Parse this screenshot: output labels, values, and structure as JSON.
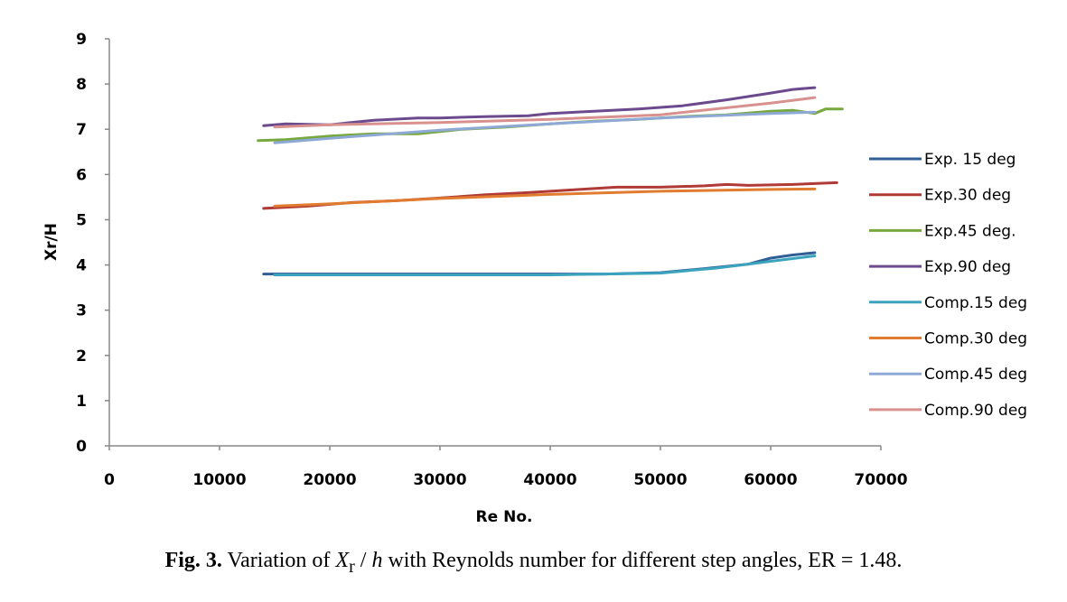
{
  "chart_data": {
    "type": "line",
    "xlabel": "Re No.",
    "ylabel": "Xr/H",
    "xlim": [
      0,
      70000
    ],
    "ylim": [
      0,
      9
    ],
    "xticks": [
      0,
      10000,
      20000,
      30000,
      40000,
      50000,
      60000,
      70000
    ],
    "yticks": [
      0,
      1,
      2,
      3,
      4,
      5,
      6,
      7,
      8,
      9
    ],
    "grid": false,
    "legend_position": "right",
    "series": [
      {
        "name": "Exp. 15 deg",
        "color": "#2f5f95",
        "x": [
          14000,
          20000,
          30000,
          40000,
          45000,
          50000,
          54000,
          58000,
          60000,
          62000,
          64000
        ],
        "y": [
          3.8,
          3.8,
          3.8,
          3.8,
          3.8,
          3.83,
          3.92,
          4.02,
          4.15,
          4.22,
          4.27
        ]
      },
      {
        "name": "Exp.30 deg",
        "color": "#b03a35",
        "x": [
          14000,
          18000,
          22000,
          26000,
          30000,
          34000,
          38000,
          42000,
          46000,
          50000,
          54000,
          56000,
          58000,
          62000,
          66000
        ],
        "y": [
          5.25,
          5.3,
          5.38,
          5.42,
          5.48,
          5.55,
          5.6,
          5.66,
          5.72,
          5.72,
          5.75,
          5.78,
          5.76,
          5.78,
          5.82
        ]
      },
      {
        "name": "Exp.45 deg.",
        "color": "#77a83e",
        "x": [
          13500,
          16000,
          20000,
          24000,
          28000,
          32000,
          36000,
          40000,
          44000,
          48000,
          52000,
          56000,
          60000,
          62000,
          64000,
          65000,
          66500
        ],
        "y": [
          6.75,
          6.77,
          6.85,
          6.9,
          6.9,
          7.0,
          7.05,
          7.12,
          7.18,
          7.22,
          7.28,
          7.32,
          7.4,
          7.42,
          7.35,
          7.45,
          7.45
        ]
      },
      {
        "name": "Exp.90 deg",
        "color": "#6b4a8e",
        "x": [
          14000,
          16000,
          20000,
          24000,
          28000,
          30000,
          34000,
          38000,
          40000,
          44000,
          48000,
          52000,
          56000,
          60000,
          62000,
          64000
        ],
        "y": [
          7.08,
          7.12,
          7.1,
          7.2,
          7.25,
          7.25,
          7.28,
          7.3,
          7.35,
          7.4,
          7.45,
          7.52,
          7.65,
          7.8,
          7.88,
          7.92
        ]
      },
      {
        "name": "Comp.15 deg",
        "color": "#3ba3bd",
        "x": [
          15000,
          20000,
          30000,
          40000,
          45000,
          50000,
          55000,
          58000,
          60000,
          62000,
          64000
        ],
        "y": [
          3.78,
          3.78,
          3.78,
          3.78,
          3.8,
          3.82,
          3.93,
          4.02,
          4.08,
          4.14,
          4.2
        ]
      },
      {
        "name": "Comp.30 deg",
        "color": "#e07b30",
        "x": [
          15000,
          20000,
          30000,
          40000,
          50000,
          60000,
          64000
        ],
        "y": [
          5.3,
          5.35,
          5.47,
          5.56,
          5.63,
          5.67,
          5.68
        ]
      },
      {
        "name": "Comp.45 deg",
        "color": "#8fa9d6",
        "x": [
          15000,
          20000,
          30000,
          40000,
          50000,
          60000,
          64000
        ],
        "y": [
          6.7,
          6.8,
          6.98,
          7.12,
          7.25,
          7.35,
          7.38
        ]
      },
      {
        "name": "Comp.90 deg",
        "color": "#d8918e",
        "x": [
          15000,
          20000,
          30000,
          40000,
          50000,
          60000,
          64000
        ],
        "y": [
          7.05,
          7.1,
          7.15,
          7.22,
          7.32,
          7.58,
          7.7
        ]
      }
    ]
  },
  "caption": {
    "fig_num": "Fig. 3.",
    "text_before": " Variation of ",
    "var": "X",
    "sub": "r",
    "slash": " / ",
    "h": "h",
    "text_after": " with Reynolds number for different step angles, ER = 1.48."
  }
}
